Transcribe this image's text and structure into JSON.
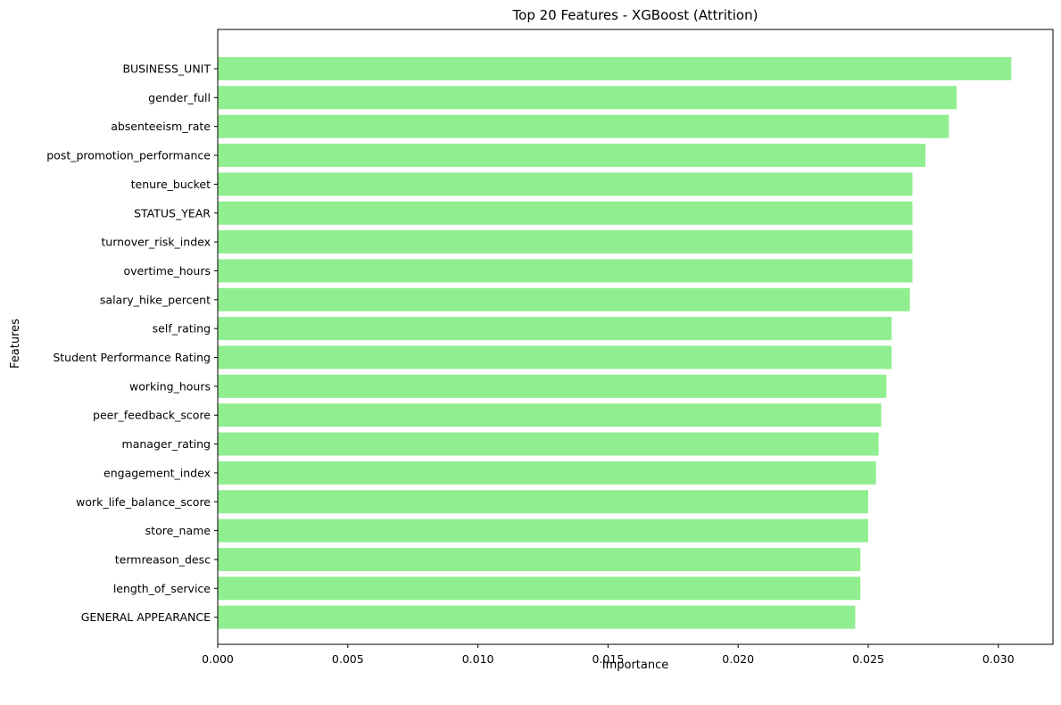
{
  "chart_data": {
    "type": "bar",
    "orientation": "horizontal",
    "title": "Top 20 Features - XGBoost (Attrition)",
    "xlabel": "Importance",
    "ylabel": "Features",
    "xlim": [
      0.0,
      0.0321
    ],
    "xticks": [
      "0.000",
      "0.005",
      "0.010",
      "0.015",
      "0.020",
      "0.025",
      "0.030"
    ],
    "xtick_values": [
      0.0,
      0.005,
      0.01,
      0.015,
      0.02,
      0.025,
      0.03
    ],
    "grid": false,
    "bar_color": "#90ee90",
    "categories": [
      "BUSINESS_UNIT",
      "gender_full",
      "absenteeism_rate",
      "post_promotion_performance",
      "tenure_bucket",
      "STATUS_YEAR",
      "turnover_risk_index",
      "overtime_hours",
      "salary_hike_percent",
      "self_rating",
      "Student Performance Rating",
      "working_hours",
      "peer_feedback_score",
      "manager_rating",
      "engagement_index",
      "work_life_balance_score",
      "store_name",
      "termreason_desc",
      "length_of_service",
      "GENERAL APPEARANCE"
    ],
    "values": [
      0.0305,
      0.0284,
      0.0281,
      0.0272,
      0.0267,
      0.0267,
      0.0267,
      0.0267,
      0.0266,
      0.0259,
      0.0259,
      0.0257,
      0.0255,
      0.0254,
      0.0253,
      0.025,
      0.025,
      0.0247,
      0.0247,
      0.0245
    ]
  }
}
